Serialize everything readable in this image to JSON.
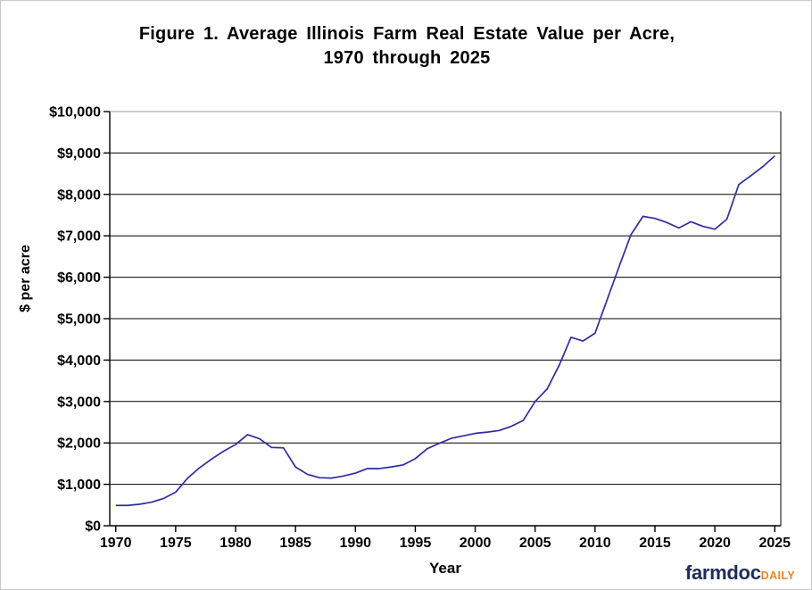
{
  "page": {
    "background": "#ffffff",
    "border_color": "#c9c9c9"
  },
  "header": {
    "title_line1": "Figure 1. Average Illinois Farm Real Estate Value per Acre,",
    "title_line2": "1970 through 2025"
  },
  "axes": {
    "y_title": "$ per acre",
    "x_title": "Year"
  },
  "branding": {
    "brand": "farmdoc",
    "brand_suffix": "DAILY",
    "brand_color": "#1e2d5a",
    "suffix_color": "#f5821f"
  },
  "chart_data": {
    "type": "line",
    "title": "Figure 1. Average Illinois Farm Real Estate Value per Acre, 1970 through 2025",
    "xlabel": "Year",
    "ylabel": "$ per acre",
    "ylim": [
      0,
      10000
    ],
    "y_tick_interval": 1000,
    "y_tick_labels": [
      "$0",
      "$1,000",
      "$2,000",
      "$3,000",
      "$4,000",
      "$5,000",
      "$6,000",
      "$7,000",
      "$8,000",
      "$9,000",
      "$10,000"
    ],
    "x_tick_labels": [
      "1970",
      "1975",
      "1980",
      "1985",
      "1990",
      "1995",
      "2000",
      "2005",
      "2010",
      "2015",
      "2020",
      "2025"
    ],
    "grid": "horizontal",
    "legend": "none",
    "line_color": "#2d2d9f",
    "axis_color": "#000000",
    "top_border_color": "#9a9a9a",
    "series": [
      {
        "name": "Average Illinois farm real estate value ($ per acre)",
        "x": [
          1970,
          1971,
          1972,
          1973,
          1974,
          1975,
          1976,
          1977,
          1978,
          1979,
          1980,
          1981,
          1982,
          1983,
          1984,
          1985,
          1986,
          1987,
          1988,
          1989,
          1990,
          1991,
          1992,
          1993,
          1994,
          1995,
          1996,
          1997,
          1998,
          1999,
          2000,
          2001,
          2002,
          2003,
          2004,
          2005,
          2006,
          2007,
          2008,
          2009,
          2010,
          2011,
          2012,
          2013,
          2014,
          2015,
          2016,
          2017,
          2018,
          2019,
          2020,
          2021,
          2022,
          2023,
          2024,
          2025
        ],
        "values": [
          490,
          490,
          520,
          570,
          660,
          810,
          1150,
          1400,
          1610,
          1800,
          1960,
          2200,
          2100,
          1890,
          1880,
          1420,
          1240,
          1160,
          1150,
          1200,
          1270,
          1380,
          1380,
          1420,
          1470,
          1620,
          1860,
          1990,
          2110,
          2170,
          2230,
          2260,
          2300,
          2400,
          2540,
          3000,
          3300,
          3870,
          4550,
          4460,
          4650,
          5450,
          6250,
          7030,
          7470,
          7420,
          7320,
          7190,
          7340,
          7230,
          7160,
          7400,
          8240,
          8450,
          8670,
          8930
        ]
      }
    ]
  }
}
